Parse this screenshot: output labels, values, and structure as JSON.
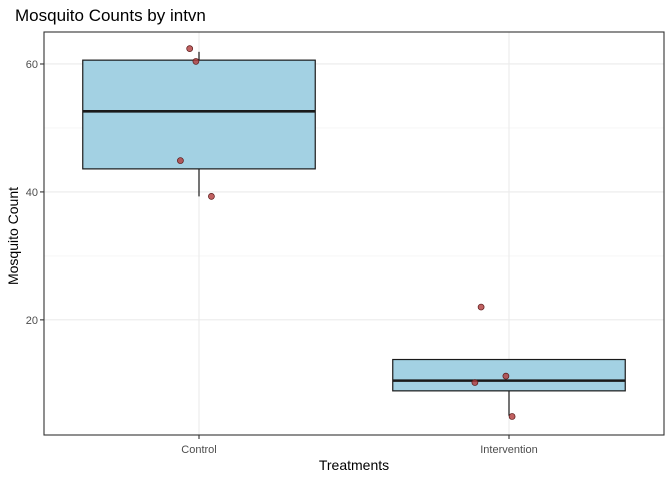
{
  "chart_data": {
    "type": "boxplot",
    "title": "Mosquito Counts by intvn",
    "xlabel": "Treatments",
    "ylabel": "Mosquito Count",
    "categories": [
      "Control",
      "Intervention"
    ],
    "ylim": [
      2,
      65
    ],
    "yticks": [
      20,
      40,
      60
    ],
    "grid": true,
    "box_fill": "#a3d1e3",
    "box_stroke": "#1a1a1a",
    "point_color": "#b03a3a",
    "boxes": [
      {
        "category": "Control",
        "min": 39.3,
        "q1": 43.6,
        "median": 52.6,
        "q3": 60.6,
        "max": 61.9
      },
      {
        "category": "Intervention",
        "min": 5,
        "q1": 8.9,
        "median": 10.5,
        "q3": 13.8,
        "max": 13.8
      }
    ],
    "points": [
      {
        "category": "Control",
        "y": 62.4,
        "jitter": -0.03
      },
      {
        "category": "Control",
        "y": 60.4,
        "jitter": -0.01
      },
      {
        "category": "Control",
        "y": 44.9,
        "jitter": -0.06
      },
      {
        "category": "Control",
        "y": 39.3,
        "jitter": 0.04
      },
      {
        "category": "Intervention",
        "y": 22.0,
        "jitter": -0.09
      },
      {
        "category": "Intervention",
        "y": 11.2,
        "jitter": -0.01
      },
      {
        "category": "Intervention",
        "y": 10.2,
        "jitter": -0.11
      },
      {
        "category": "Intervention",
        "y": 4.9,
        "jitter": 0.01
      }
    ]
  }
}
